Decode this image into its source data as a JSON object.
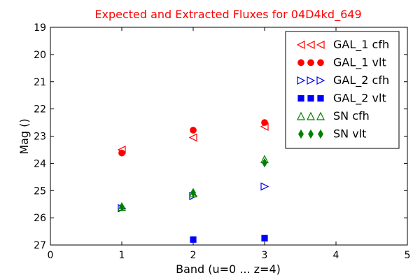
{
  "colors": {
    "red": "#ff0000",
    "blue": "#0000ff",
    "green": "#008000",
    "axis": "#000000",
    "background": "#ffffff"
  },
  "chart_data": {
    "type": "scatter",
    "title": "Expected and Extracted Fluxes for 04D4kd_649",
    "xlabel": "Band (u=0 ... z=4)",
    "ylabel": "Mag ()",
    "xlim": [
      0,
      5
    ],
    "ylim": [
      27,
      19
    ],
    "y_inverted": true,
    "x_ticks": [
      "0",
      "1",
      "2",
      "3",
      "4",
      "5"
    ],
    "y_ticks": [
      "19",
      "20",
      "21",
      "22",
      "23",
      "24",
      "25",
      "26",
      "27"
    ],
    "grid": false,
    "legend_position": "top-right",
    "series": [
      {
        "name": "GAL_1 cfh",
        "marker": "triangle-left",
        "filled": false,
        "color": "#ff0000",
        "points": [
          {
            "x": 1.0,
            "y": 23.5
          },
          {
            "x": 2.0,
            "y": 23.05
          },
          {
            "x": 3.0,
            "y": 22.65
          }
        ]
      },
      {
        "name": "GAL_1 vlt",
        "marker": "circle",
        "filled": true,
        "color": "#ff0000",
        "points": [
          {
            "x": 1.0,
            "y": 23.62
          },
          {
            "x": 2.0,
            "y": 22.78
          },
          {
            "x": 3.0,
            "y": 22.5
          }
        ]
      },
      {
        "name": "GAL_2 cfh",
        "marker": "triangle-right",
        "filled": false,
        "color": "#0000ff",
        "points": [
          {
            "x": 1.0,
            "y": 25.65
          },
          {
            "x": 2.0,
            "y": 25.2
          },
          {
            "x": 3.0,
            "y": 24.85
          }
        ]
      },
      {
        "name": "GAL_2 vlt",
        "marker": "square",
        "filled": true,
        "color": "#0000ff",
        "points": [
          {
            "x": 2.0,
            "y": 26.8
          },
          {
            "x": 3.0,
            "y": 26.75
          }
        ]
      },
      {
        "name": "SN cfh",
        "marker": "triangle-up",
        "filled": false,
        "color": "#008000",
        "points": [
          {
            "x": 1.0,
            "y": 25.6
          },
          {
            "x": 2.0,
            "y": 25.1
          },
          {
            "x": 3.0,
            "y": 23.85
          }
        ]
      },
      {
        "name": "SN vlt",
        "marker": "diamond",
        "filled": true,
        "color": "#008000",
        "points": [
          {
            "x": 1.0,
            "y": 25.6
          },
          {
            "x": 2.0,
            "y": 25.08
          },
          {
            "x": 3.0,
            "y": 23.98
          }
        ]
      }
    ]
  }
}
